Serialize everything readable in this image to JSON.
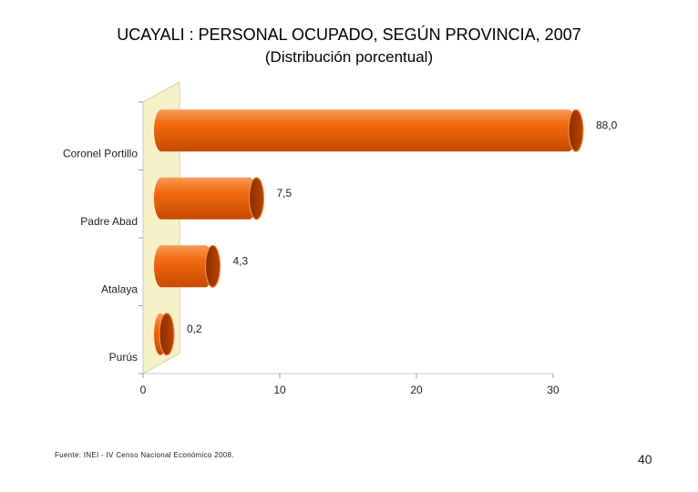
{
  "title": "UCAYALI : PERSONAL OCUPADO, SEGÚN PROVINCIA, 2007",
  "subtitle": "(Distribución porcentual)",
  "source": "Fuente: INEI - IV Censo Nacional Económico 2008.",
  "page_number": "40",
  "chart_data": {
    "type": "bar",
    "orientation": "horizontal",
    "title": "UCAYALI : PERSONAL OCUPADO, SEGÚN PROVINCIA, 2007",
    "subtitle": "(Distribución porcentual)",
    "categories": [
      "Coronel Portillo",
      "Padre Abad",
      "Atalaya",
      "Purús"
    ],
    "values": [
      88.0,
      7.5,
      4.3,
      0.2
    ],
    "value_labels": [
      "88,0",
      "7,5",
      "4,3",
      "0,2"
    ],
    "xlim": [
      0,
      30
    ],
    "xticks": [
      0,
      10,
      20,
      30
    ],
    "xlabel": "",
    "ylabel": "",
    "grid": false,
    "legend": "none",
    "bar_color": "#f26a10",
    "bar_dark_color": "#b33b00",
    "wall_color": "#f7f1c8"
  }
}
